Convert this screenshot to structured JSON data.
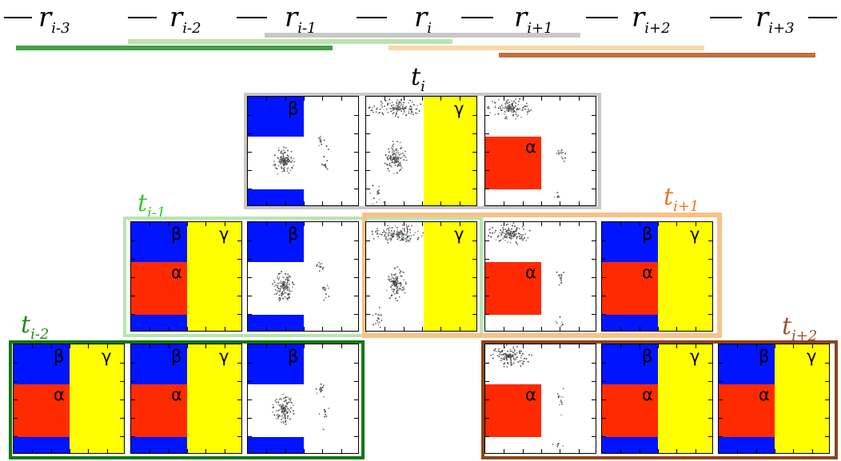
{
  "figure": {
    "r_labels": [
      {
        "base": "r",
        "sub": "i-3"
      },
      {
        "base": "r",
        "sub": "i-2"
      },
      {
        "base": "r",
        "sub": "i-1"
      },
      {
        "base": "r",
        "sub": "i"
      },
      {
        "base": "r",
        "sub": "i+1"
      },
      {
        "base": "r",
        "sub": "i+2"
      },
      {
        "base": "r",
        "sub": "i+3"
      }
    ],
    "t_labels": [
      {
        "base": "t",
        "sub": "i",
        "color": "#000000"
      },
      {
        "base": "t",
        "sub": "i-1",
        "color": "#33cc33"
      },
      {
        "base": "t",
        "sub": "i+1",
        "color": "#ee7722"
      },
      {
        "base": "t",
        "sub": "i-2",
        "color": "#228822"
      },
      {
        "base": "t",
        "sub": "i+2",
        "color": "#a0522d"
      }
    ],
    "region_symbols": {
      "alpha": "α",
      "beta": "β",
      "gamma": "γ"
    },
    "colors": {
      "alpha_region": "#ff2a00",
      "beta_region": "#0014ff",
      "gamma_region": "#ffff00",
      "group_i": "#c8c8c8",
      "group_i_minus_1": "#b8e6b0",
      "group_i_plus_1": "#f8c288",
      "group_i_minus_2": "#117711",
      "group_i_plus_2": "#8b4513"
    }
  }
}
